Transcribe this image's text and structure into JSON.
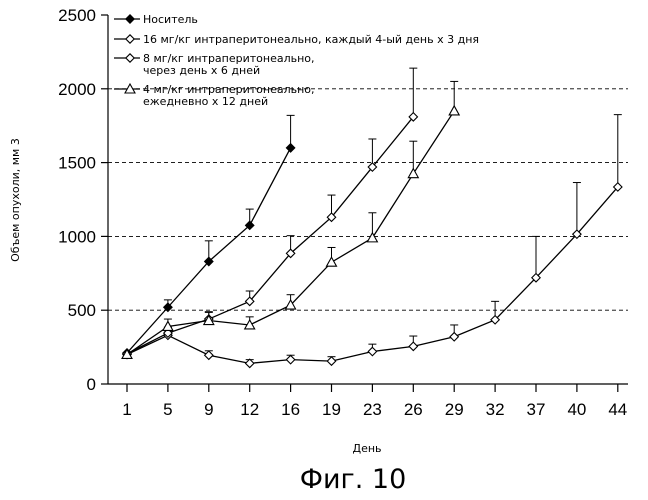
{
  "chart_data": {
    "type": "line",
    "title": "",
    "xlabel": "День",
    "ylabel": "Объем опухоли, мм 3",
    "ylim": [
      0,
      2500
    ],
    "yticks": [
      0,
      500,
      1000,
      1500,
      2000,
      2500
    ],
    "categories": [
      "1",
      "5",
      "9",
      "12",
      "16",
      "19",
      "23",
      "26",
      "29",
      "32",
      "37",
      "40",
      "44"
    ],
    "grid": "horizontal dashed at 500, 1000, 1500, 2000",
    "legend_position": "top-left",
    "series": [
      {
        "name": "Носитель",
        "marker": "filled-diamond",
        "points": [
          {
            "day": "1",
            "value": 210,
            "err": 0
          },
          {
            "day": "5",
            "value": 520,
            "err": 50
          },
          {
            "day": "9",
            "value": 830,
            "err": 140
          },
          {
            "day": "12",
            "value": 1075,
            "err": 110
          },
          {
            "day": "16",
            "value": 1600,
            "err": 220
          }
        ]
      },
      {
        "name": "16 мг/кг интраперитонеально, каждый 4-ый день x 3 дня",
        "marker": "open-diamond",
        "points": [
          {
            "day": "1",
            "value": 200,
            "err": 0
          },
          {
            "day": "5",
            "value": 330,
            "err": 30
          },
          {
            "day": "9",
            "value": 195,
            "err": 30
          },
          {
            "day": "12",
            "value": 140,
            "err": 25
          },
          {
            "day": "16",
            "value": 165,
            "err": 30
          },
          {
            "day": "19",
            "value": 155,
            "err": 30
          },
          {
            "day": "23",
            "value": 220,
            "err": 50
          },
          {
            "day": "26",
            "value": 255,
            "err": 70
          },
          {
            "day": "29",
            "value": 320,
            "err": 80
          },
          {
            "day": "32",
            "value": 435,
            "err": 125
          },
          {
            "day": "37",
            "value": 720,
            "err": 280
          },
          {
            "day": "40",
            "value": 1015,
            "err": 350
          },
          {
            "day": "44",
            "value": 1335,
            "err": 490
          }
        ]
      },
      {
        "name": "8 мг/кг интраперитонеально, через день x 6 дней",
        "marker": "open-diamond",
        "points": [
          {
            "day": "1",
            "value": 205,
            "err": 0
          },
          {
            "day": "5",
            "value": 345,
            "err": 40
          },
          {
            "day": "9",
            "value": 440,
            "err": 50
          },
          {
            "day": "12",
            "value": 560,
            "err": 70
          },
          {
            "day": "16",
            "value": 885,
            "err": 120
          },
          {
            "day": "19",
            "value": 1130,
            "err": 150
          },
          {
            "day": "23",
            "value": 1470,
            "err": 190
          },
          {
            "day": "26",
            "value": 1810,
            "err": 330
          }
        ]
      },
      {
        "name": "4 мг/кг интраперитонеально, ежедневно x 12 дней",
        "marker": "open-triangle",
        "points": [
          {
            "day": "1",
            "value": 200,
            "err": 0
          },
          {
            "day": "5",
            "value": 390,
            "err": 50
          },
          {
            "day": "9",
            "value": 430,
            "err": 55
          },
          {
            "day": "12",
            "value": 400,
            "err": 55
          },
          {
            "day": "16",
            "value": 535,
            "err": 70
          },
          {
            "day": "19",
            "value": 825,
            "err": 100
          },
          {
            "day": "23",
            "value": 990,
            "err": 170
          },
          {
            "day": "26",
            "value": 1425,
            "err": 220
          },
          {
            "day": "29",
            "value": 1850,
            "err": 200
          }
        ]
      }
    ],
    "legend": [
      {
        "lines": [
          "Носитель"
        ],
        "marker": "filled-diamond"
      },
      {
        "lines": [
          "16 мг/кг интраперитонеально, каждый 4-ый день x 3 дня"
        ],
        "marker": "open-diamond"
      },
      {
        "lines": [
          "8 мг/кг интраперитонеально,",
          "через день x 6 дней"
        ],
        "marker": "open-diamond"
      },
      {
        "lines": [
          "4 мг/кг интраперитонеально,",
          "ежедневно x 12 дней"
        ],
        "marker": "open-triangle"
      }
    ]
  },
  "caption": "Фиг. 10"
}
